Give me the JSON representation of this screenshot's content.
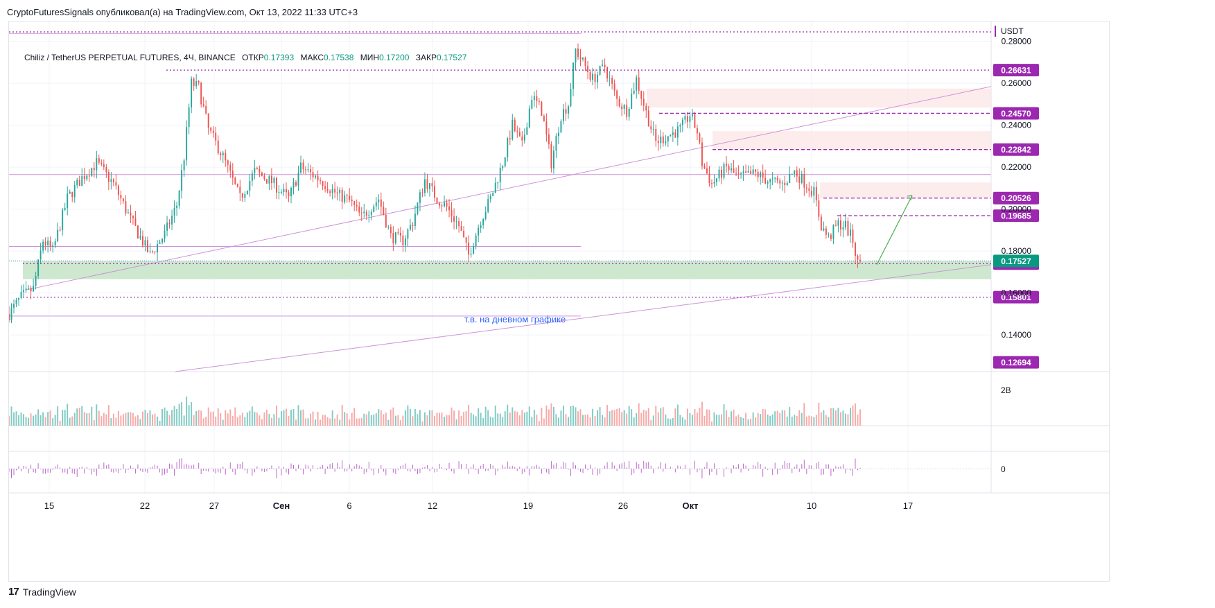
{
  "header": {
    "publisher_line": "CryptoFuturesSignals опубликовал(а) на TradingView.com, Окт 13, 2022 11:33 UTC+3"
  },
  "legend": {
    "symbol": "Chiliz / TetherUS PERPETUAL FUTURES, 4Ч, BINANCE",
    "open_label": "ОТКР",
    "open": "0.17393",
    "high_label": "МАКС",
    "high": "0.17538",
    "low_label": "МИН",
    "low": "0.17200",
    "close_label": "ЗАКР",
    "close": "0.17527"
  },
  "footer": {
    "brand": "TradingView",
    "logo_glyph": "17"
  },
  "colors": {
    "up": "#26a69a",
    "down": "#ef5350",
    "level": "#9c27b0",
    "zone_green": "#c8e6c9",
    "zone_red": "#fce4e4",
    "last_price": "#089981",
    "volume_up": "#80cbc4",
    "volume_down": "#f7a9a7",
    "osc": "#ba68c8",
    "annotation_text": "#2962ff",
    "arrow": "#4caf50"
  },
  "chart_data": {
    "type": "candlestick",
    "title": "Chiliz / TetherUS PERPETUAL FUTURES, 4Ч, BINANCE",
    "currency": "USDT",
    "ylim": [
      0.1225,
      0.2895
    ],
    "y_ticks": [
      "0.28000",
      "0.26000",
      "0.24000",
      "0.22000",
      "0.20000",
      "0.18000",
      "0.16000",
      "0.14000"
    ],
    "x_ticks": [
      {
        "label": "15",
        "bold": false
      },
      {
        "label": "22",
        "bold": false
      },
      {
        "label": "27",
        "bold": false
      },
      {
        "label": "Сен",
        "bold": true
      },
      {
        "label": "6",
        "bold": false
      },
      {
        "label": "12",
        "bold": false
      },
      {
        "label": "19",
        "bold": false
      },
      {
        "label": "26",
        "bold": false
      },
      {
        "label": "Окт",
        "bold": true
      },
      {
        "label": "10",
        "bold": false
      },
      {
        "label": "17",
        "bold": false
      }
    ],
    "price_levels": [
      {
        "value": 0.26631,
        "label": "0.26631",
        "style": "dotted"
      },
      {
        "value": 0.2457,
        "label": "0.24570",
        "style": "dashed"
      },
      {
        "value": 0.22842,
        "label": "0.22842",
        "style": "dashed"
      },
      {
        "value": 0.20526,
        "label": "0.20526",
        "style": "dashed"
      },
      {
        "value": 0.19685,
        "label": "0.19685",
        "style": "dashed"
      },
      {
        "value": 0.174,
        "label": "0.17400",
        "style": "dotted"
      },
      {
        "value": 0.15801,
        "label": "0.15801",
        "style": "dotted"
      },
      {
        "value": 0.12694,
        "label": "0.12694",
        "style": "none"
      }
    ],
    "last_price": {
      "value": 0.17527,
      "label": "0.17527"
    },
    "zones": [
      {
        "kind": "demand",
        "from": 0.1666,
        "to": 0.1752
      },
      {
        "kind": "supply",
        "from": 0.2484,
        "to": 0.2575
      },
      {
        "kind": "supply",
        "from": 0.2283,
        "to": 0.2372
      },
      {
        "kind": "supply",
        "from": 0.2053,
        "to": 0.2127
      }
    ],
    "annotation": "т.в. на дневном графике",
    "volume_label": "2B",
    "oscillator_label": "0",
    "anchors": [
      {
        "t": 0,
        "v": 0.15
      },
      {
        "t": 5,
        "v": 0.158
      },
      {
        "t": 10,
        "v": 0.162
      },
      {
        "t": 14,
        "v": 0.185
      },
      {
        "t": 18,
        "v": 0.18
      },
      {
        "t": 24,
        "v": 0.205
      },
      {
        "t": 30,
        "v": 0.215
      },
      {
        "t": 36,
        "v": 0.222
      },
      {
        "t": 43,
        "v": 0.212
      },
      {
        "t": 50,
        "v": 0.195
      },
      {
        "t": 58,
        "v": 0.178
      },
      {
        "t": 64,
        "v": 0.188
      },
      {
        "t": 69,
        "v": 0.202
      },
      {
        "t": 72,
        "v": 0.225
      },
      {
        "t": 75,
        "v": 0.26
      },
      {
        "t": 78,
        "v": 0.258
      },
      {
        "t": 82,
        "v": 0.238
      },
      {
        "t": 88,
        "v": 0.225
      },
      {
        "t": 95,
        "v": 0.205
      },
      {
        "t": 101,
        "v": 0.218
      },
      {
        "t": 108,
        "v": 0.213
      },
      {
        "t": 115,
        "v": 0.205
      },
      {
        "t": 120,
        "v": 0.22
      },
      {
        "t": 128,
        "v": 0.214
      },
      {
        "t": 135,
        "v": 0.207
      },
      {
        "t": 140,
        "v": 0.204
      },
      {
        "t": 145,
        "v": 0.196
      },
      {
        "t": 152,
        "v": 0.205
      },
      {
        "t": 157,
        "v": 0.187
      },
      {
        "t": 162,
        "v": 0.185
      },
      {
        "t": 166,
        "v": 0.194
      },
      {
        "t": 171,
        "v": 0.214
      },
      {
        "t": 176,
        "v": 0.205
      },
      {
        "t": 180,
        "v": 0.201
      },
      {
        "t": 185,
        "v": 0.192
      },
      {
        "t": 189,
        "v": 0.178
      },
      {
        "t": 194,
        "v": 0.195
      },
      {
        "t": 198,
        "v": 0.205
      },
      {
        "t": 203,
        "v": 0.222
      },
      {
        "t": 207,
        "v": 0.24
      },
      {
        "t": 211,
        "v": 0.23
      },
      {
        "t": 215,
        "v": 0.254
      },
      {
        "t": 219,
        "v": 0.247
      },
      {
        "t": 223,
        "v": 0.222
      },
      {
        "t": 227,
        "v": 0.245
      },
      {
        "t": 230,
        "v": 0.25
      },
      {
        "t": 233,
        "v": 0.276
      },
      {
        "t": 236,
        "v": 0.27
      },
      {
        "t": 240,
        "v": 0.262
      },
      {
        "t": 245,
        "v": 0.268
      },
      {
        "t": 250,
        "v": 0.252
      },
      {
        "t": 254,
        "v": 0.247
      },
      {
        "t": 258,
        "v": 0.262
      },
      {
        "t": 262,
        "v": 0.246
      },
      {
        "t": 266,
        "v": 0.232
      },
      {
        "t": 271,
        "v": 0.235
      },
      {
        "t": 276,
        "v": 0.238
      },
      {
        "t": 280,
        "v": 0.245
      },
      {
        "t": 283,
        "v": 0.237
      },
      {
        "t": 285,
        "v": 0.222
      },
      {
        "t": 289,
        "v": 0.212
      },
      {
        "t": 295,
        "v": 0.22
      },
      {
        "t": 300,
        "v": 0.215
      },
      {
        "t": 307,
        "v": 0.217
      },
      {
        "t": 313,
        "v": 0.213
      },
      {
        "t": 318,
        "v": 0.212
      },
      {
        "t": 323,
        "v": 0.218
      },
      {
        "t": 327,
        "v": 0.213
      },
      {
        "t": 331,
        "v": 0.208
      },
      {
        "t": 334,
        "v": 0.192
      },
      {
        "t": 337,
        "v": 0.186
      },
      {
        "t": 341,
        "v": 0.193
      },
      {
        "t": 344,
        "v": 0.192
      },
      {
        "t": 347,
        "v": 0.185
      },
      {
        "t": 349,
        "v": 0.174
      },
      {
        "t": 350,
        "v": 0.17527
      }
    ]
  }
}
